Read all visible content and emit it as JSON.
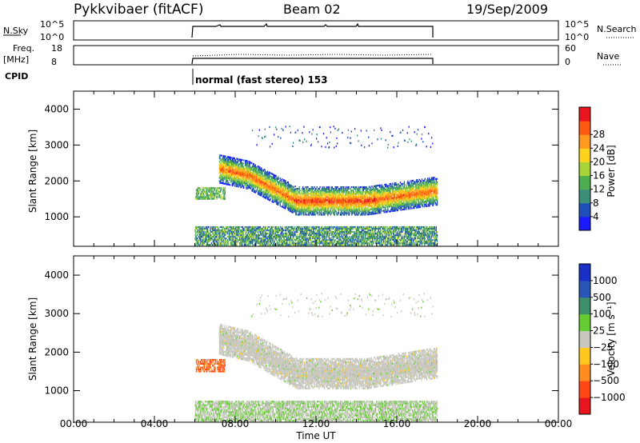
{
  "header": {
    "station": "Pykkvibaer (fitACF)",
    "beam": "Beam 02",
    "date": "19/Sep/2009"
  },
  "status_panels": {
    "nsky": {
      "label": "N.Sky",
      "tick_top": "10^5",
      "tick_bottom": "10^0",
      "right_tick_top": "10^5",
      "right_tick_bottom": "10^0",
      "right_label": "N.Search"
    },
    "freq": {
      "label": "Freq.",
      "unit": "[MHz]",
      "tick_top": "18",
      "tick_bottom": "8",
      "right_tick_top": "60",
      "right_tick_bottom": "0",
      "right_label": "Nave"
    },
    "cpid": {
      "label": "CPID",
      "text": "normal (fast stereo) 153"
    }
  },
  "chart_data": [
    {
      "type": "heatmap",
      "title": "",
      "xlabel": "Time UT",
      "ylabel": "Slant Range [km]",
      "xlim_hours": [
        0,
        24
      ],
      "ylim": [
        180,
        4500
      ],
      "yticks": [
        1000,
        2000,
        3000,
        4000
      ],
      "colorbar": {
        "label": "Power [dB]",
        "ticks": [
          "4",
          "8",
          "12",
          "16",
          "20",
          "24",
          "28"
        ],
        "colors": [
          "#1a1aff",
          "#1e4fb8",
          "#3d8f7a",
          "#4fae4f",
          "#a8d43a",
          "#ffd21e",
          "#ff9a1e",
          "#ff5a14",
          "#e8141e"
        ]
      },
      "data_time_range_hours": [
        6,
        18
      ],
      "main_band": {
        "start_range_km": 2200,
        "min_range_km": 1350,
        "end_range_km": 1700,
        "peak_power_db": 28
      },
      "upper_patches_km": [
        3100,
        3500
      ],
      "ground_scatter_km": [
        200,
        700
      ]
    },
    {
      "type": "heatmap",
      "title": "",
      "xlabel": "Time UT",
      "ylabel": "Slant Range [km]",
      "xlim_hours": [
        0,
        24
      ],
      "ylim": [
        180,
        4500
      ],
      "yticks": [
        1000,
        2000,
        3000,
        4000
      ],
      "colorbar": {
        "label": "Velocity [m s⁻¹]",
        "ticks": [
          "1000",
          "500",
          "100",
          "25",
          "−25",
          "−100",
          "−500",
          "−1000"
        ],
        "colors": [
          "#1a2fc8",
          "#2a56b8",
          "#3f8f6a",
          "#66cc33",
          "#c8c8c0",
          "#ffc81e",
          "#ff8c1e",
          "#ff4614",
          "#e8141e"
        ]
      },
      "xticks": [
        "00:00",
        "04:00",
        "08:00",
        "12:00",
        "16:00",
        "20:00",
        "00:00"
      ],
      "data_time_range_hours": [
        6,
        18
      ],
      "notable_feature": {
        "time_hours": [
          6.0,
          7.4
        ],
        "range_km": [
          1500,
          1800
        ],
        "velocity": "negative (orange/red)"
      }
    }
  ]
}
